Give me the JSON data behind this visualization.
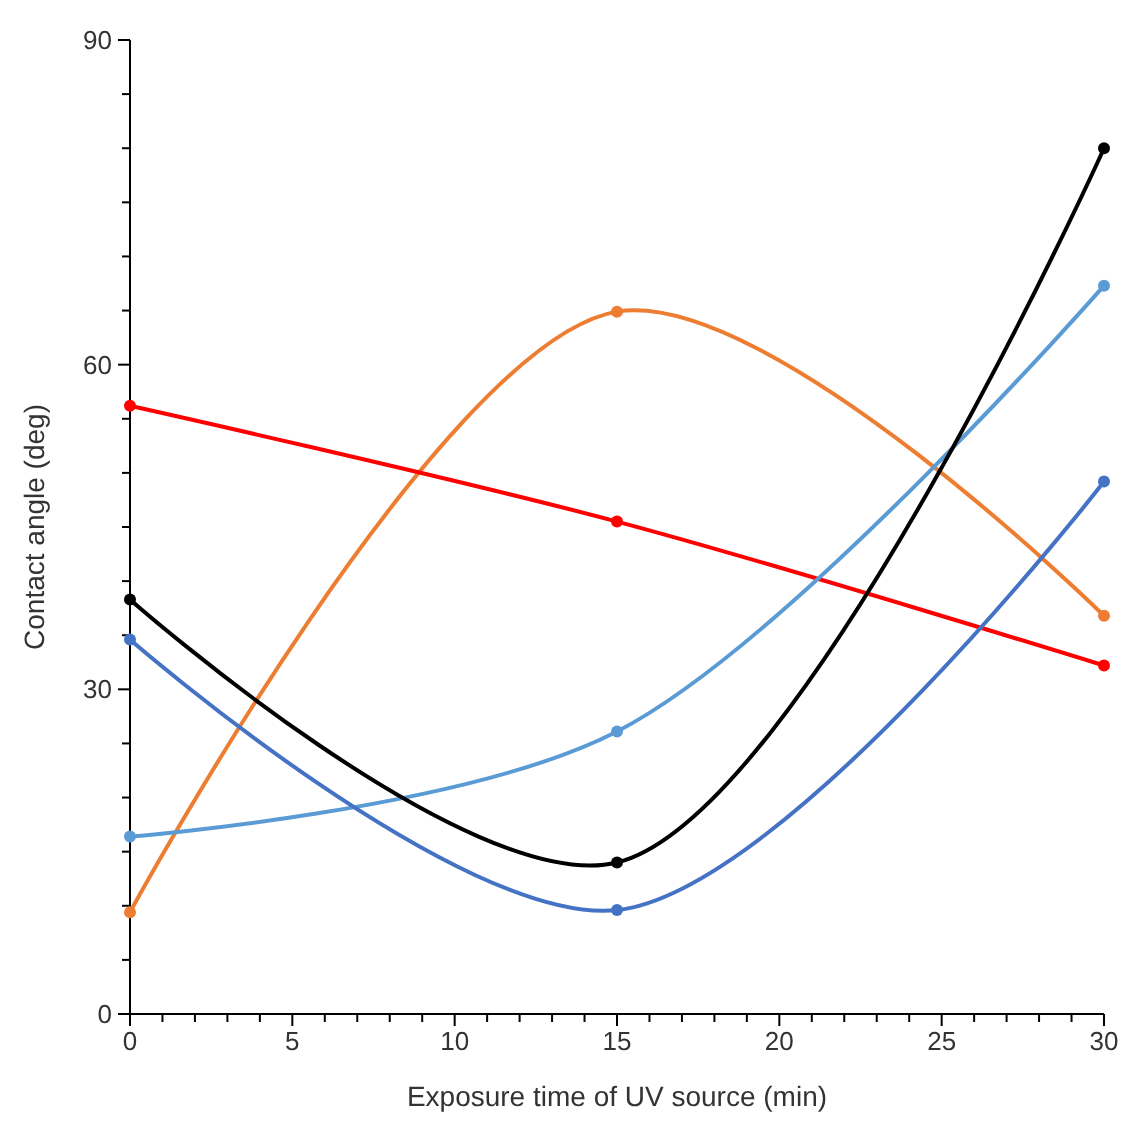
{
  "chart_data": {
    "type": "line",
    "xlabel": "Exposure time of UV source (min)",
    "ylabel": "Contact angle (deg)",
    "x": [
      0,
      15,
      30
    ],
    "xlim": [
      0,
      30
    ],
    "ylim": [
      0,
      90
    ],
    "xticks": [
      0,
      {
        "value": 1,
        "label": null
      },
      {
        "value": 2,
        "label": null
      },
      {
        "value": 3,
        "label": null
      },
      {
        "value": 4,
        "label": null
      },
      5,
      {
        "value": 6,
        "label": null
      },
      {
        "value": 7,
        "label": null
      },
      {
        "value": 8,
        "label": null
      },
      {
        "value": 9,
        "label": null
      },
      10,
      {
        "value": 11,
        "label": null
      },
      {
        "value": 12,
        "label": null
      },
      {
        "value": 13,
        "label": null
      },
      {
        "value": 14,
        "label": null
      },
      15,
      {
        "value": 16,
        "label": null
      },
      {
        "value": 17,
        "label": null
      },
      {
        "value": 18,
        "label": null
      },
      {
        "value": 19,
        "label": null
      },
      20,
      {
        "value": 21,
        "label": null
      },
      {
        "value": 22,
        "label": null
      },
      {
        "value": 23,
        "label": null
      },
      {
        "value": 24,
        "label": null
      },
      25,
      {
        "value": 26,
        "label": null
      },
      {
        "value": 27,
        "label": null
      },
      {
        "value": 28,
        "label": null
      },
      {
        "value": 29,
        "label": null
      },
      30
    ],
    "yticks": [
      0,
      {
        "value": 5,
        "label": null
      },
      {
        "value": 10,
        "label": null
      },
      {
        "value": 15,
        "label": null
      },
      {
        "value": 20,
        "label": null
      },
      {
        "value": 25,
        "label": null
      },
      30,
      {
        "value": 35,
        "label": null
      },
      {
        "value": 40,
        "label": null
      },
      {
        "value": 45,
        "label": null
      },
      {
        "value": 50,
        "label": null
      },
      {
        "value": 55,
        "label": null
      },
      60,
      {
        "value": 65,
        "label": null
      },
      {
        "value": 70,
        "label": null
      },
      {
        "value": 75,
        "label": null
      },
      {
        "value": 80,
        "label": null
      },
      {
        "value": 85,
        "label": null
      },
      90
    ],
    "marker": "circle",
    "grid": false,
    "series": [
      {
        "color": "#ed7d31",
        "values": [
          9.4,
          64.9,
          36.8
        ]
      },
      {
        "color": "#ff0000",
        "values": [
          56.2,
          45.5,
          32.2
        ]
      },
      {
        "color": "#5b9bd5",
        "values": [
          16.4,
          26.1,
          67.3
        ]
      },
      {
        "color": "#4472c4",
        "values": [
          34.6,
          9.6,
          49.2
        ]
      },
      {
        "color": "#000000",
        "values": [
          38.3,
          14.0,
          80.0
        ]
      }
    ]
  }
}
